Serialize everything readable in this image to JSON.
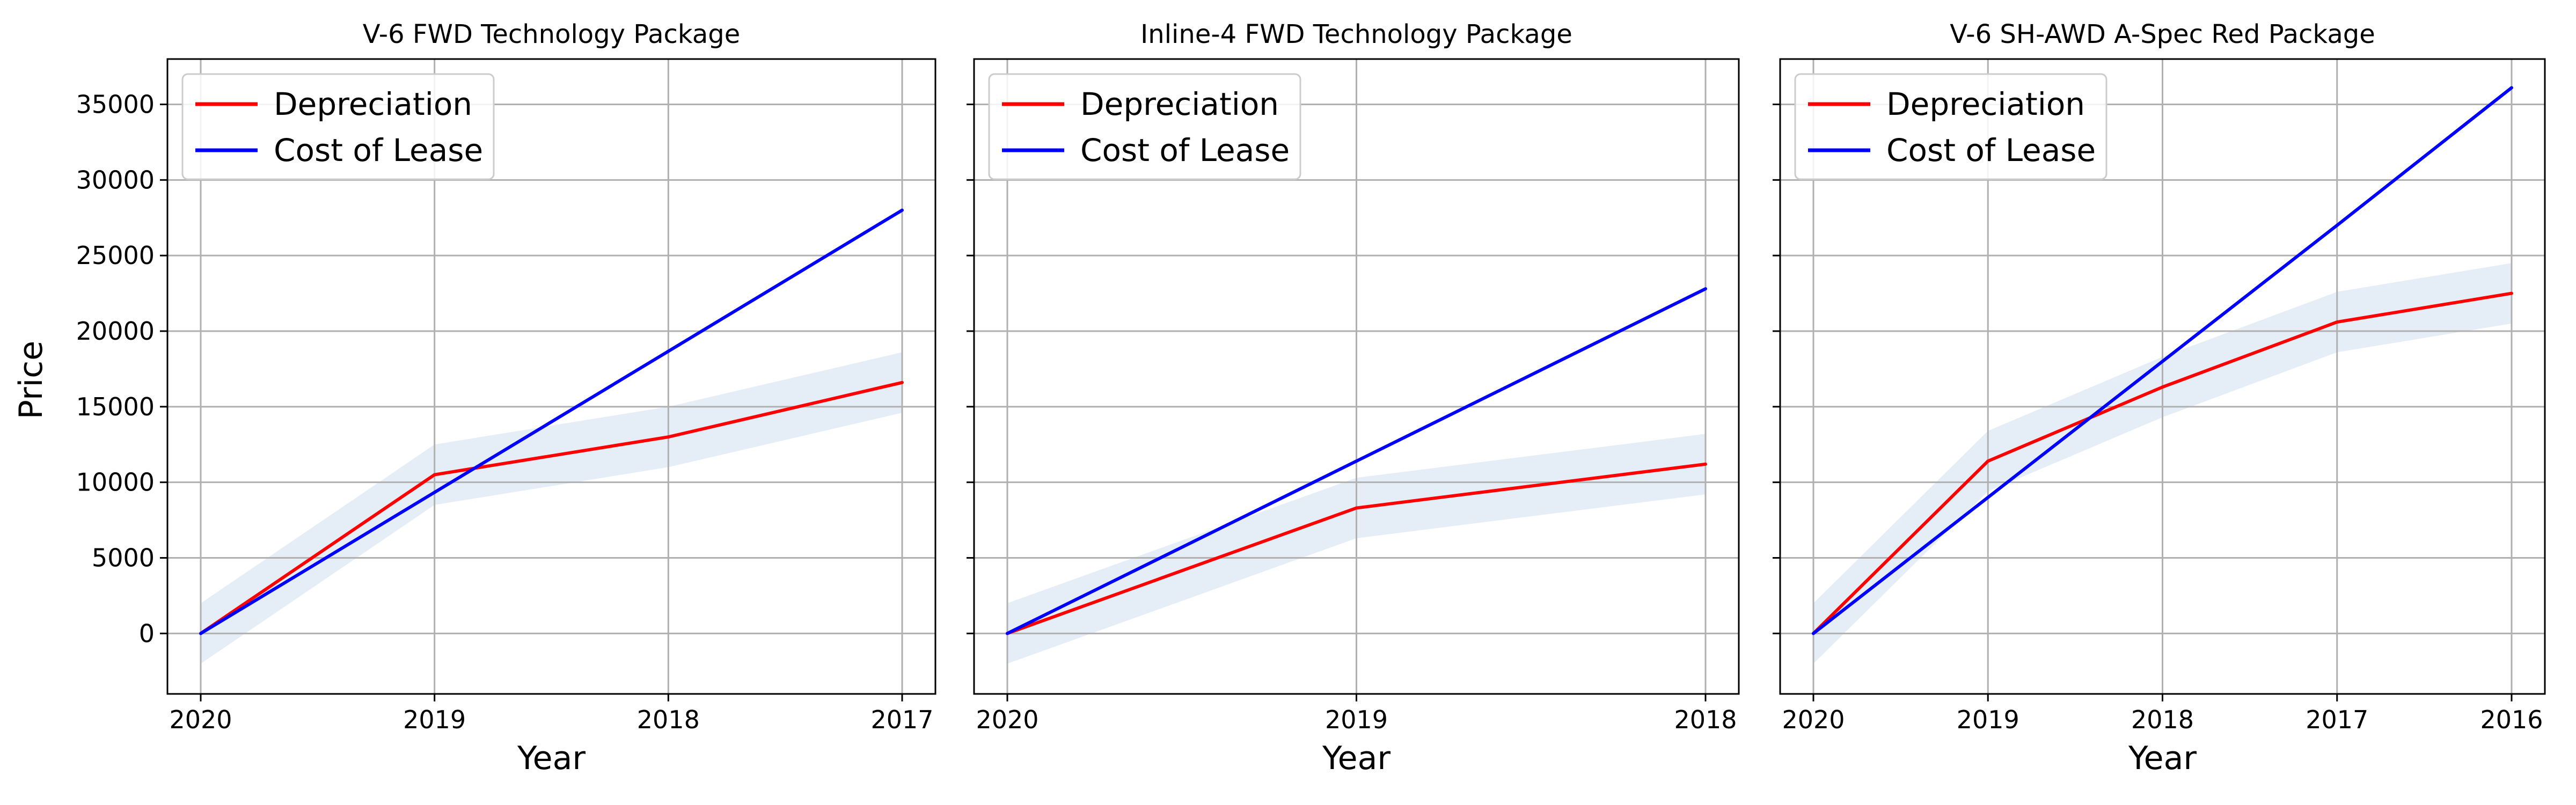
{
  "figure": {
    "shared_ylabel": "Price"
  },
  "chart_data": [
    {
      "type": "line",
      "title": "V-6 FWD Technology Package",
      "xlabel": "Year",
      "ylabel": "Price",
      "categories": [
        "2020",
        "2019",
        "2018",
        "2017"
      ],
      "series": [
        {
          "name": "Depreciation",
          "color": "#ff0000",
          "values": [
            0,
            10500,
            13000,
            16600
          ],
          "band_low": [
            -2000,
            8500,
            11000,
            14600
          ],
          "band_high": [
            2000,
            12500,
            15000,
            18600
          ]
        },
        {
          "name": "Cost of Lease",
          "color": "#0000ff",
          "values": [
            0,
            9333,
            18667,
            28000
          ]
        }
      ],
      "ylim": [
        -4000,
        38000
      ],
      "yticks": [
        0,
        5000,
        10000,
        15000,
        20000,
        25000,
        30000,
        35000
      ],
      "show_yticklabels": true,
      "grid": true,
      "legend": "top-left",
      "band_color": "#e5eef7"
    },
    {
      "type": "line",
      "title": "Inline-4 FWD Technology Package",
      "xlabel": "Year",
      "ylabel": "",
      "categories": [
        "2020",
        "2019",
        "2018"
      ],
      "series": [
        {
          "name": "Depreciation",
          "color": "#ff0000",
          "values": [
            0,
            8300,
            11200
          ],
          "band_low": [
            -2000,
            6300,
            9200
          ],
          "band_high": [
            2000,
            10300,
            13200
          ]
        },
        {
          "name": "Cost of Lease",
          "color": "#0000ff",
          "values": [
            0,
            11400,
            22800
          ]
        }
      ],
      "ylim": [
        -4000,
        38000
      ],
      "yticks": [
        0,
        5000,
        10000,
        15000,
        20000,
        25000,
        30000,
        35000
      ],
      "show_yticklabels": false,
      "grid": true,
      "legend": "top-left",
      "band_color": "#e5eef7"
    },
    {
      "type": "line",
      "title": "V-6 SH-AWD A-Spec Red Package",
      "xlabel": "Year",
      "ylabel": "",
      "categories": [
        "2020",
        "2019",
        "2018",
        "2017",
        "2016"
      ],
      "series": [
        {
          "name": "Depreciation",
          "color": "#ff0000",
          "values": [
            0,
            11400,
            16300,
            20600,
            22500
          ],
          "band_low": [
            -2000,
            9400,
            14300,
            18600,
            20500
          ],
          "band_high": [
            2000,
            13400,
            18300,
            22600,
            24500
          ]
        },
        {
          "name": "Cost of Lease",
          "color": "#0000ff",
          "values": [
            0,
            9000,
            18000,
            27000,
            36100
          ]
        }
      ],
      "ylim": [
        -4000,
        38000
      ],
      "yticks": [
        0,
        5000,
        10000,
        15000,
        20000,
        25000,
        30000,
        35000
      ],
      "show_yticklabels": false,
      "grid": true,
      "legend": "top-left",
      "band_color": "#e5eef7"
    }
  ]
}
